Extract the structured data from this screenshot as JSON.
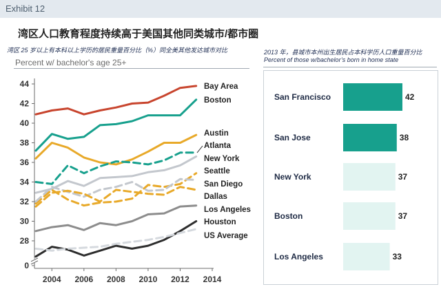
{
  "exhibit": "Exhibit 12",
  "title": "湾区人口教育程度持续高于美国其他同类城市/都市圈",
  "left_subtitle": "湾区 25 岁以上有本科以上学历的居民重量百分比（%）同全美其他发达城市对比",
  "right_subtitle_cn": "2013 年，县城市本州出生居民占本科学历人口重量百分比",
  "right_subtitle_en": "Percent of those w/bachelor’s born in home state",
  "colors": {
    "bay_area": "#c8452e",
    "boston": "#17a08d",
    "austin": "#e8a929",
    "atlanta": "#17a08d",
    "new_york": "#c3c7cd",
    "seattle": "#e8a929",
    "san_diego": "#c3c7cd",
    "dallas": "#e8a929",
    "los_angeles": "#8c8c8c",
    "houston": "#2d2d2d",
    "us_average": "#d5d9de",
    "bar_dark": "#17a08d",
    "bar_light": "#e2f4f1"
  },
  "chart_data": [
    {
      "type": "line",
      "title": "Percent w/ bachelor's age 25+",
      "xlabel": "",
      "ylabel": "",
      "x": [
        2003,
        2004,
        2005,
        2006,
        2007,
        2008,
        2009,
        2010,
        2011,
        2012,
        2013
      ],
      "xticks": [
        2004,
        2006,
        2008,
        2010,
        2012,
        2014
      ],
      "xlim": [
        2003,
        2014
      ],
      "yticks": [
        0,
        28,
        30,
        32,
        34,
        36,
        38,
        40,
        42,
        44
      ],
      "ylim_display": [
        28,
        44
      ],
      "axis_break": true,
      "grid": false,
      "legend": "inline-right",
      "series": [
        {
          "name": "Bay Area",
          "style": "solid",
          "color_key": "bay_area",
          "values": [
            40.9,
            41.3,
            41.5,
            40.9,
            41.3,
            41.6,
            42.0,
            42.1,
            42.8,
            43.6,
            43.8
          ]
        },
        {
          "name": "Boston",
          "style": "solid",
          "color_key": "boston",
          "values": [
            37.2,
            38.9,
            38.4,
            38.6,
            39.8,
            39.9,
            40.2,
            40.8,
            40.8,
            40.8,
            42.4
          ]
        },
        {
          "name": "Austin",
          "style": "solid",
          "color_key": "austin",
          "values": [
            36.4,
            38.0,
            37.5,
            36.5,
            36.0,
            35.8,
            36.3,
            37.1,
            38.0,
            38.0,
            38.8
          ]
        },
        {
          "name": "Atlanta",
          "style": "dashed",
          "color_key": "atlanta",
          "values": [
            34.0,
            33.8,
            35.7,
            34.9,
            35.6,
            36.1,
            36.0,
            35.8,
            36.2,
            37.0,
            37.0
          ]
        },
        {
          "name": "New York",
          "style": "solid",
          "color_key": "new_york",
          "values": [
            32.9,
            33.3,
            34.1,
            33.6,
            34.4,
            34.5,
            34.6,
            35.0,
            35.2,
            35.7,
            36.6
          ]
        },
        {
          "name": "Seattle",
          "style": "dashed",
          "color_key": "seattle",
          "values": [
            31.8,
            33.2,
            32.2,
            31.6,
            31.9,
            32.0,
            32.3,
            33.7,
            33.5,
            33.8,
            34.9
          ]
        },
        {
          "name": "San Diego",
          "style": "dashed",
          "color_key": "san_diego",
          "values": [
            32.0,
            33.5,
            33.0,
            32.5,
            33.2,
            33.5,
            34.0,
            33.1,
            33.2,
            34.3,
            34.2
          ]
        },
        {
          "name": "Dallas",
          "style": "dashed",
          "color_key": "dallas",
          "values": [
            31.5,
            32.9,
            33.1,
            32.8,
            32.0,
            33.2,
            33.0,
            32.8,
            32.7,
            33.5,
            33.2
          ]
        },
        {
          "name": "Los Angeles",
          "style": "solid",
          "color_key": "los_angeles",
          "values": [
            29.0,
            29.4,
            29.6,
            29.1,
            29.8,
            29.6,
            30.0,
            30.7,
            30.8,
            31.5,
            31.6
          ]
        },
        {
          "name": "Houston",
          "style": "solid",
          "color_key": "houston",
          "values": [
            26.4,
            27.4,
            27.1,
            26.5,
            27.0,
            27.5,
            27.2,
            27.5,
            28.1,
            29.0,
            30.0
          ]
        },
        {
          "name": "US Average",
          "style": "dashed",
          "color_key": "us_average",
          "values": [
            27.2,
            27.0,
            27.2,
            27.3,
            27.4,
            27.7,
            27.9,
            28.1,
            28.4,
            28.8,
            29.2
          ]
        }
      ],
      "tick_labels_y": [
        "0",
        "28",
        "30",
        "32",
        "34",
        "36",
        "38",
        "40",
        "42",
        "44"
      ],
      "tick_labels_x": [
        "2004",
        "2006",
        "2008",
        "2010",
        "2012",
        "2014"
      ],
      "series_labels": [
        "Bay Area",
        "Boston",
        "Austin",
        "Atlanta",
        "New York",
        "Seattle",
        "San Diego",
        "Dallas",
        "Los Angeles",
        "Houston",
        "US Average"
      ]
    },
    {
      "type": "bar",
      "orientation": "horizontal",
      "title": "Percent of those w/bachelor’s born in home state",
      "categories": [
        "San Francisco",
        "San Jose",
        "New York",
        "Boston",
        "Los Angeles"
      ],
      "values": [
        42,
        38,
        37,
        37,
        33
      ],
      "value_labels": [
        "42",
        "38",
        "37",
        "37",
        "33"
      ],
      "highlight": [
        true,
        true,
        false,
        false,
        false
      ],
      "xlim": [
        0,
        42
      ]
    }
  ]
}
